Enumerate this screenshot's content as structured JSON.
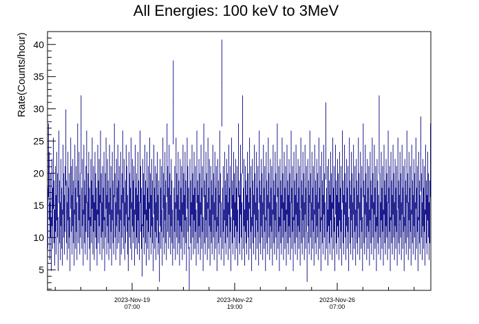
{
  "chart_data": {
    "type": "scatter",
    "title": "All Energies:  100 keV to 3MeV",
    "xlabel": "",
    "ylabel": "Rate(Counts/hour)",
    "ylim": [
      1.8,
      42
    ],
    "yticks": [
      5,
      10,
      15,
      20,
      25,
      30,
      35,
      40
    ],
    "xticks": [
      {
        "date": "2023-Nov-19",
        "time": "07:00"
      },
      {
        "date": "2023-Nov-22",
        "time": "19:00"
      },
      {
        "date": "2023-Nov-26",
        "time": "07:00"
      }
    ],
    "error_bars": "poisson",
    "grid": false,
    "colors": {
      "series": "#000080"
    },
    "series": [
      {
        "values": [
          13,
          22,
          18,
          11,
          15,
          9,
          17,
          13,
          20,
          14,
          10,
          16,
          12,
          18,
          15,
          9,
          21,
          14,
          11,
          17,
          13,
          10,
          19,
          15,
          12,
          16,
          24,
          14,
          11,
          18,
          13,
          15,
          9,
          20,
          16,
          12,
          17,
          14,
          10,
          19,
          13,
          16,
          11,
          22,
          14,
          18,
          12,
          15,
          26,
          13,
          17,
          10,
          19,
          14,
          12,
          16,
          21,
          11,
          15,
          18,
          13,
          9,
          17,
          14,
          20,
          12,
          16,
          11,
          18,
          15,
          13,
          10,
          19,
          14,
          17,
          12,
          21,
          15,
          11,
          16,
          13,
          18,
          9,
          15,
          20,
          12,
          17,
          14,
          11,
          19,
          13,
          16,
          10,
          18,
          14,
          12,
          22,
          15,
          11,
          17,
          13,
          19,
          14,
          16,
          10,
          18,
          12,
          15,
          21,
          13,
          17,
          11,
          14,
          19,
          16,
          12,
          9,
          18,
          15,
          13,
          20,
          11,
          17,
          14,
          16,
          10,
          19,
          13,
          15,
          12,
          18,
          14,
          11,
          21,
          16,
          13,
          8,
          17,
          15,
          12,
          19,
          14,
          10,
          18,
          13,
          16,
          11,
          20,
          15,
          12,
          17,
          14,
          9,
          19,
          13,
          16,
          11,
          15,
          18,
          12,
          14,
          7,
          17,
          13,
          16,
          10,
          20,
          15,
          12,
          18,
          14,
          11,
          22,
          16,
          13,
          19,
          15,
          12,
          17,
          14,
          10,
          31,
          13,
          16,
          11,
          20,
          15,
          12,
          18,
          14,
          10,
          17,
          13,
          16,
          11,
          19,
          15,
          12,
          18,
          14,
          9,
          20,
          16,
          13,
          5,
          17,
          14,
          11,
          19,
          15,
          12,
          18,
          13,
          16,
          10,
          21,
          14,
          12,
          17,
          15,
          11,
          19,
          13,
          16,
          9,
          22,
          14,
          12,
          18,
          15,
          11,
          20,
          13,
          17,
          10,
          16,
          14,
          12,
          19,
          15,
          11,
          18,
          13,
          16,
          9,
          17,
          14,
          12,
          21,
          15,
          11,
          34,
          13,
          16,
          10,
          18,
          14,
          12,
          17,
          15,
          11,
          19,
          13,
          16,
          9,
          20,
          14,
          12,
          18,
          15,
          11,
          17,
          13,
          16,
          10,
          22,
          14,
          12,
          19,
          15,
          11,
          26,
          13,
          17,
          10,
          16,
          14,
          12,
          18,
          15,
          11,
          20,
          13,
          16,
          9,
          17,
          14,
          12,
          19,
          15,
          11,
          18,
          13,
          16,
          10,
          21,
          14,
          12,
          17,
          15,
          11,
          19,
          13,
          16,
          9,
          18,
          14,
          12,
          20,
          15,
          11,
          17,
          13,
          16,
          10,
          19,
          14,
          12,
          18,
          15,
          11,
          22,
          13,
          16,
          9,
          17,
          14,
          12,
          20,
          15,
          11,
          18,
          13,
          16,
          10,
          19,
          14,
          12,
          17,
          15,
          11,
          21,
          13,
          16,
          9,
          18,
          14,
          12,
          19,
          15,
          11,
          17,
          13,
          16,
          10,
          20,
          14,
          12,
          18,
          15,
          11,
          19,
          13,
          16,
          7,
          17,
          14,
          12,
          21,
          15,
          11,
          18,
          13,
          16,
          10,
          19,
          14,
          12,
          17,
          15,
          11,
          20,
          13,
          16,
          9,
          18,
          14,
          12,
          19,
          15,
          11,
          25,
          13,
          16,
          10,
          17,
          14,
          12,
          18,
          15,
          11,
          20,
          13,
          16,
          9,
          19,
          14,
          12,
          17,
          15,
          11,
          18,
          13,
          16,
          10,
          21,
          14,
          12,
          19,
          15,
          11,
          17,
          13,
          16,
          9,
          20,
          14,
          12,
          18,
          15,
          11,
          19,
          13,
          16,
          10,
          17,
          14,
          12,
          20,
          15,
          11,
          18,
          13,
          16,
          9,
          22,
          14,
          12,
          19,
          15,
          11,
          17,
          13,
          16,
          10,
          18,
          14,
          12,
          20,
          15,
          11,
          19,
          13,
          16,
          9,
          17,
          14,
          12,
          26,
          15,
          11,
          18,
          13,
          16,
          10,
          19,
          14,
          12,
          17,
          15,
          11,
          21,
          13,
          16,
          9,
          18,
          14,
          12,
          19,
          15,
          11,
          17,
          13,
          16,
          10,
          20,
          14,
          12,
          18,
          15,
          11,
          19,
          13,
          16,
          9,
          17,
          14,
          12,
          21,
          15,
          11,
          18,
          13,
          16,
          10,
          19,
          14,
          12,
          17,
          15,
          11,
          20,
          13,
          16,
          9,
          18,
          14,
          12,
          23,
          15,
          11,
          17,
          13,
          16,
          10,
          19,
          14,
          12,
          18,
          15,
          11,
          14,
          22
        ]
      }
    ]
  }
}
